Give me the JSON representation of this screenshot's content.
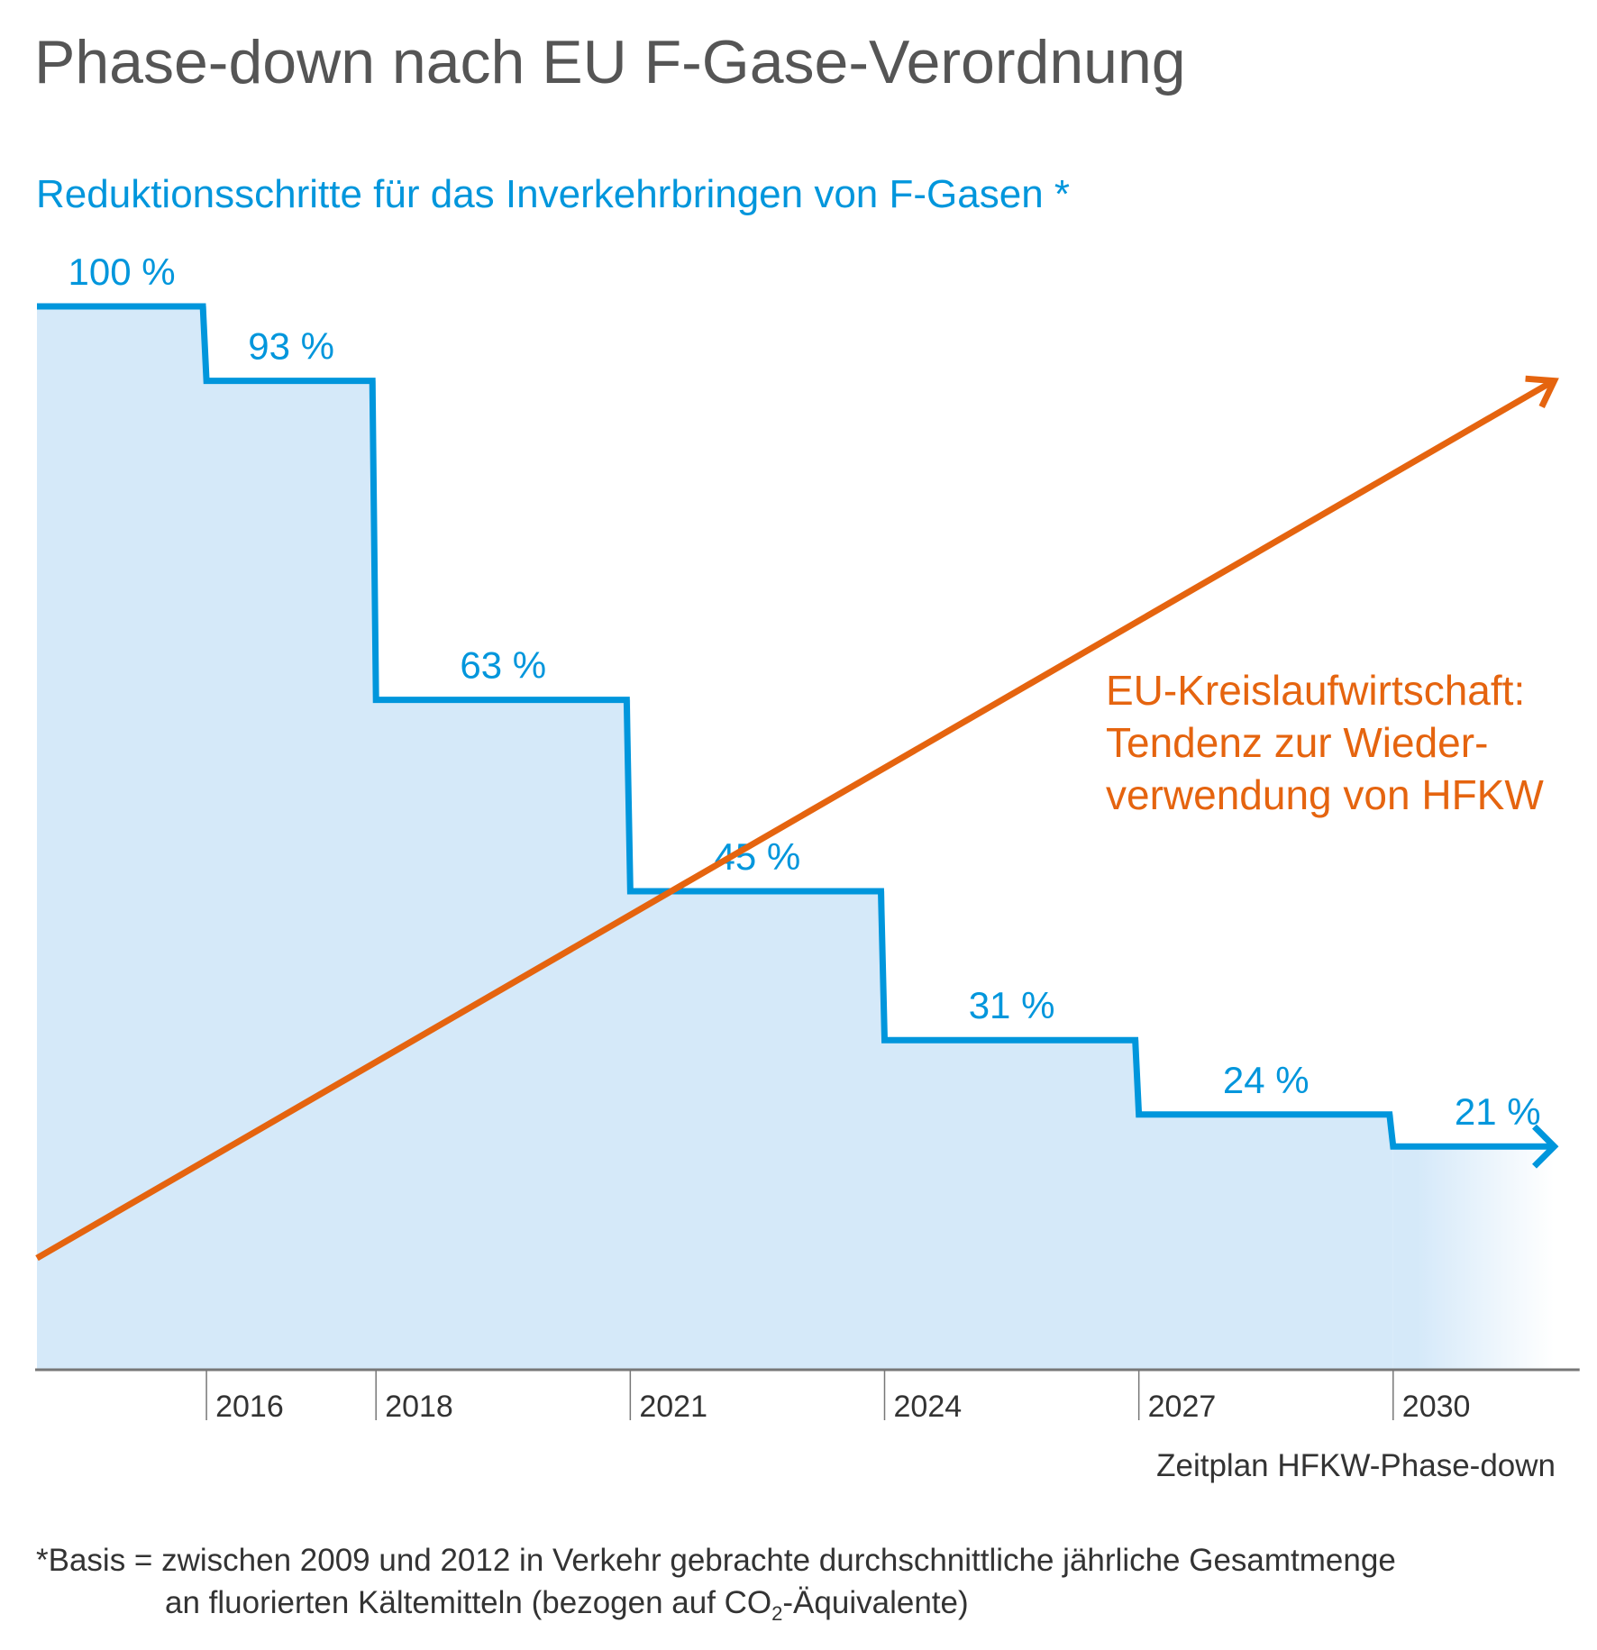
{
  "colors": {
    "step": "#0096dc",
    "fill": "#d5e9f9",
    "trend": "#e5640f",
    "title": "#555555",
    "axis": "#777777",
    "text": "#333333"
  },
  "chart_data": {
    "type": "line",
    "title": "Phase-down nach EU F-Gase-Verordnung",
    "subtitle": "Reduktionsschritte für das Inverkehrbringen von F-Gasen *",
    "xlabel": "Zeitplan HFKW-Phase-down",
    "ylabel": "",
    "x_ticks": [
      "2016",
      "2018",
      "2021",
      "2024",
      "2027",
      "2030"
    ],
    "xlim": [
      2014,
      2032.2
    ],
    "ylim": [
      0,
      100
    ],
    "grid": false,
    "series": [
      {
        "name": "Phase-down",
        "type": "step",
        "x_start": [
          2014,
          2016,
          2018,
          2021,
          2024,
          2027,
          2030
        ],
        "x_end": [
          2016,
          2018,
          2021,
          2024,
          2027,
          2030,
          2031.9
        ],
        "values": [
          100,
          93,
          63,
          45,
          31,
          24,
          21
        ],
        "labels": [
          "100 %",
          "93 %",
          "63 %",
          "45 %",
          "31 %",
          "24 %",
          "21 %"
        ]
      },
      {
        "name": "EU-Kreislaufwirtschaft",
        "type": "trend-arrow",
        "x": [
          2014,
          2031.9
        ],
        "values": [
          10.5,
          93
        ]
      }
    ],
    "annotation": [
      "EU-Kreislaufwirtschaft:",
      "Tendenz zur Wieder-",
      "verwendung von HFKW"
    ]
  },
  "footnote": {
    "line1": "*Basis = zwischen 2009 und 2012 in Verkehr gebrachte durchschnittliche jährliche Gesamtmenge",
    "line2_pre": "an fluorierten Kältemitteln (bezogen auf CO",
    "line2_sub": "2",
    "line2_post": "-Äquivalente)"
  }
}
